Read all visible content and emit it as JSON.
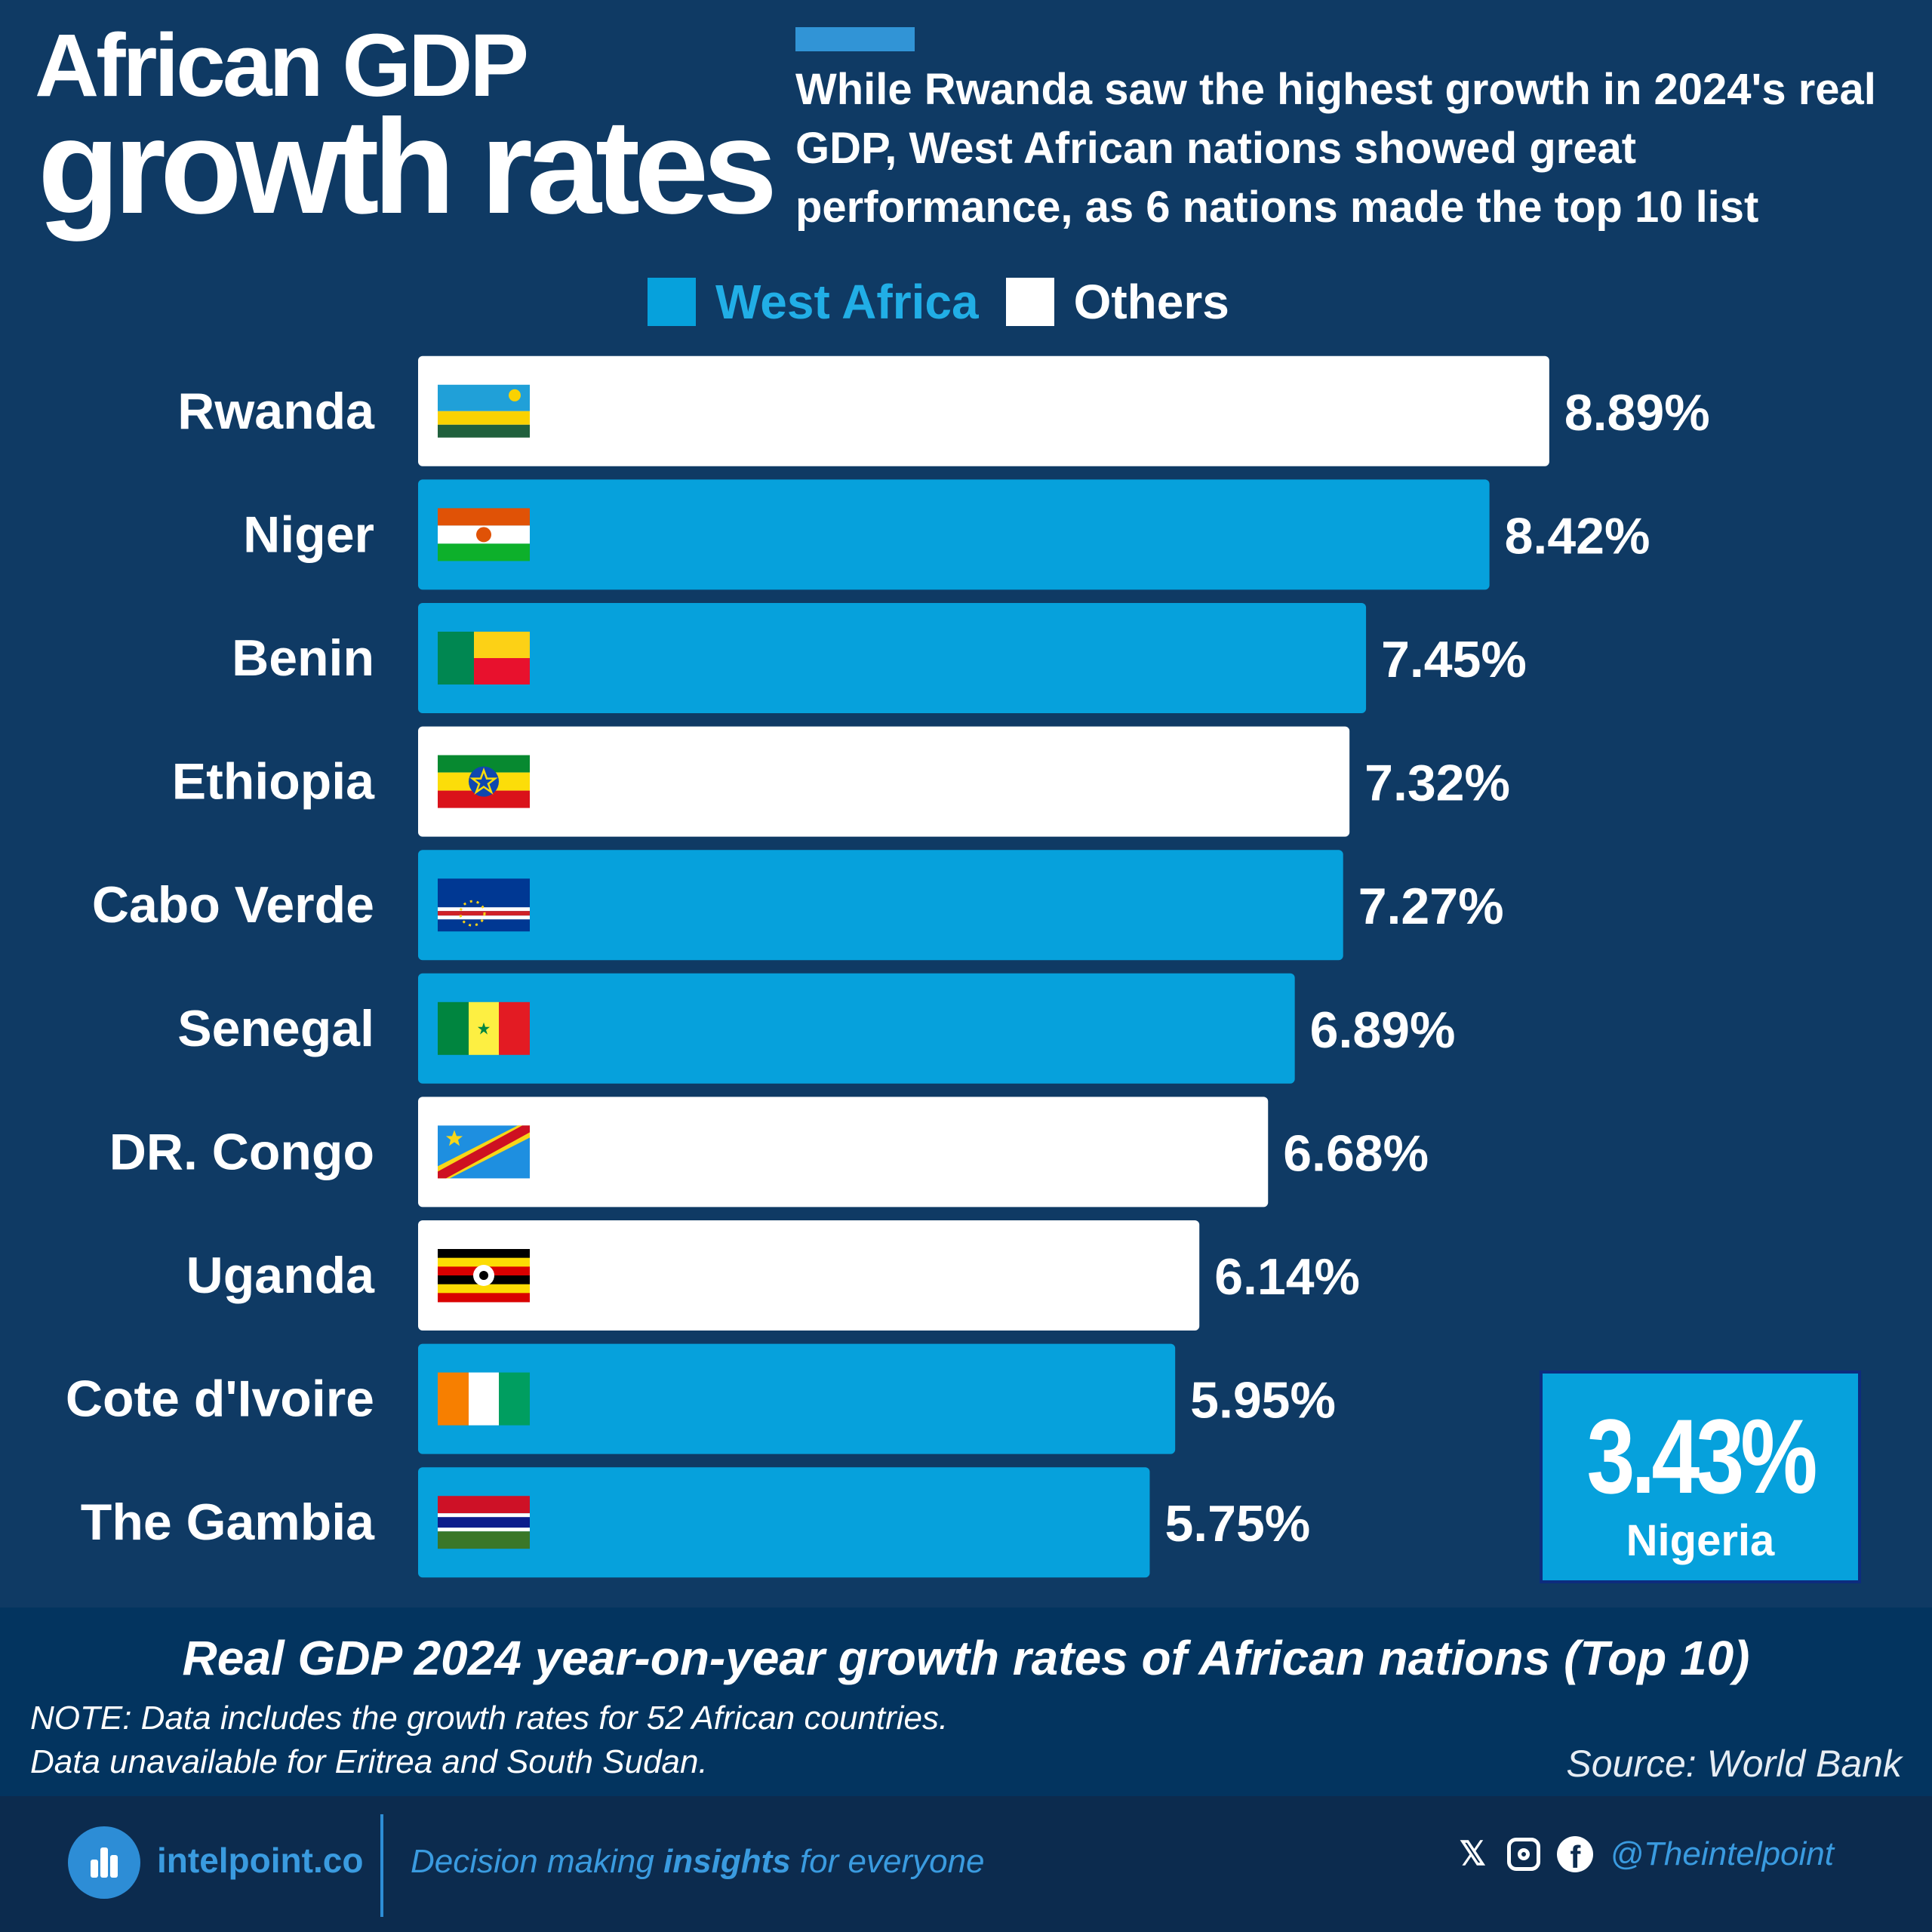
{
  "header": {
    "title_line1": "African GDP",
    "title_line2": "growth rates",
    "subtitle": "While Rwanda saw the highest growth in 2024's real GDP, West African nations showed great performance, as 6 nations made the top 10 list"
  },
  "legend": [
    {
      "label": "West Africa",
      "color": "#06a1dc",
      "text_color": "#21aee6"
    },
    {
      "label": "Others",
      "color": "#ffffff",
      "text_color": "#ffffff"
    }
  ],
  "chart_data": {
    "type": "bar",
    "orientation": "horizontal",
    "categories": [
      "Rwanda",
      "Niger",
      "Benin",
      "Ethiopia",
      "Cabo Verde",
      "Senegal",
      "DR. Congo",
      "Uganda",
      "Cote d'Ivoire",
      "The Gambia"
    ],
    "values": [
      8.89,
      8.42,
      7.45,
      7.32,
      7.27,
      6.89,
      6.68,
      6.14,
      5.95,
      5.75
    ],
    "value_labels": [
      "8.89%",
      "8.42%",
      "7.45%",
      "7.32%",
      "7.27%",
      "6.89%",
      "6.68%",
      "6.14%",
      "5.95%",
      "5.75%"
    ],
    "groups": [
      "Others",
      "West Africa",
      "West Africa",
      "Others",
      "West Africa",
      "West Africa",
      "Others",
      "Others",
      "West Africa",
      "West Africa"
    ],
    "flags": [
      "rwanda-flag",
      "niger-flag",
      "benin-flag",
      "ethiopia-flag",
      "cabo-verde-flag",
      "senegal-flag",
      "dr-congo-flag",
      "uganda-flag",
      "cote-divoire-flag",
      "gambia-flag"
    ],
    "xlim": [
      0,
      10
    ],
    "unit": "%",
    "title": "Real GDP 2024 year-on-year growth rates of African nations (Top 10)",
    "xlabel": "",
    "ylabel": "",
    "grid": false,
    "legend_position": "top-center"
  },
  "highlight": {
    "value": "3.43%",
    "label": "Nigeria"
  },
  "caption": {
    "title": "Real GDP 2024 year-on-year growth rates of African nations (Top 10)",
    "note_line1": "NOTE: Data includes the growth rates for 52 African countries.",
    "note_line2": "Data unavailable for Eritrea and South Sudan.",
    "source": "Source: World Bank"
  },
  "footer": {
    "brand": "intelpoint.co",
    "tagline_pre": "Decision making ",
    "tagline_bold": "insights",
    "tagline_post": " for everyone",
    "social_icons": [
      "x-icon",
      "instagram-icon",
      "facebook-icon"
    ],
    "handle": "@Theintelpoint"
  },
  "colors": {
    "background": "#0f3a64",
    "west_africa": "#06a1dc",
    "others": "#ffffff",
    "caption_band": "#03345f",
    "footer": "#0c2b4e",
    "accent": "#3194d6"
  }
}
